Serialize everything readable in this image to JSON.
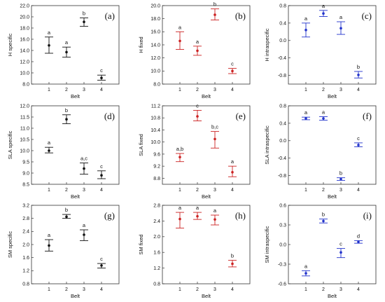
{
  "chart_data": [
    {
      "panel": "(a)",
      "type": "scatter",
      "error_bars": true,
      "ylabel": "H specific",
      "xlabel": "Belt",
      "categories": [
        "1",
        "2",
        "3",
        "4"
      ],
      "ylim": [
        8,
        22
      ],
      "yticks": [
        "8.0",
        "10.0",
        "12.0",
        "14.0",
        "16.0",
        "18.0",
        "20.0",
        "22.0"
      ],
      "mean": [
        14.9,
        13.7,
        19.1,
        9.1
      ],
      "lower": [
        13.5,
        12.8,
        18.3,
        8.7
      ],
      "upper": [
        16.4,
        14.6,
        19.8,
        9.6
      ],
      "letters": [
        "a",
        "a",
        "b",
        "c"
      ],
      "color": "#111111"
    },
    {
      "panel": "(b)",
      "type": "scatter",
      "error_bars": true,
      "ylabel": "H fixed",
      "xlabel": "Belt",
      "categories": [
        "1",
        "2",
        "3",
        "4"
      ],
      "ylim": [
        8,
        20
      ],
      "yticks": [
        "8.0",
        "10.0",
        "12.0",
        "14.0",
        "16.0",
        "18.0",
        "20.0"
      ],
      "mean": [
        14.6,
        13.1,
        18.6,
        10.0
      ],
      "lower": [
        13.3,
        12.4,
        17.8,
        9.6
      ],
      "upper": [
        16.0,
        13.8,
        19.5,
        10.4
      ],
      "letters": [
        "a",
        "a",
        "b",
        "c"
      ],
      "color": "#cc2222"
    },
    {
      "panel": "(c)",
      "type": "scatter",
      "error_bars": true,
      "ylabel": "H intraspecific",
      "xlabel": "Belt",
      "categories": [
        "1",
        "2",
        "3",
        "4"
      ],
      "ylim": [
        -1.0,
        0.8
      ],
      "yticks": [
        "-0.8",
        "-0.4",
        "0.0",
        "0.4",
        "0.8"
      ],
      "mean": [
        0.24,
        0.62,
        0.28,
        -0.79
      ],
      "lower": [
        0.08,
        0.55,
        0.14,
        -0.86
      ],
      "upper": [
        0.4,
        0.69,
        0.43,
        -0.71
      ],
      "letters": [
        "a",
        "a",
        "a",
        "b"
      ],
      "color": "#2233cc"
    },
    {
      "panel": "(d)",
      "type": "scatter",
      "error_bars": true,
      "ylabel": "SLA specific",
      "xlabel": "Belt",
      "categories": [
        "1",
        "2",
        "3",
        "4"
      ],
      "ylim": [
        8.5,
        12.0
      ],
      "yticks": [
        "8.5",
        "9.0",
        "9.5",
        "10.0",
        "10.5",
        "11.0",
        "11.5",
        "12.0"
      ],
      "mean": [
        10.0,
        11.4,
        9.2,
        8.9
      ],
      "lower": [
        9.9,
        11.2,
        8.95,
        8.75
      ],
      "upper": [
        10.15,
        11.6,
        9.45,
        9.1
      ],
      "letters": [
        "a",
        "b",
        "a,c",
        "c"
      ],
      "color": "#111111"
    },
    {
      "panel": "(e)",
      "type": "scatter",
      "error_bars": true,
      "ylabel": "SLA fixed",
      "xlabel": "Belt",
      "categories": [
        "1",
        "2",
        "3",
        "4"
      ],
      "ylim": [
        8.6,
        11.2
      ],
      "yticks": [
        "8.8",
        "9.2",
        "9.6",
        "10.0",
        "10.4",
        "10.8",
        "11.2"
      ],
      "mean": [
        9.5,
        10.85,
        10.1,
        9.0
      ],
      "lower": [
        9.35,
        10.7,
        9.8,
        8.85
      ],
      "upper": [
        9.62,
        11.05,
        10.35,
        9.2
      ],
      "letters": [
        "a,b",
        "c",
        "b,c",
        "a"
      ],
      "color": "#cc2222"
    },
    {
      "panel": "(f)",
      "type": "scatter",
      "error_bars": true,
      "ylabel": "SLA intraspecific",
      "xlabel": "Belt",
      "categories": [
        "1",
        "2",
        "3",
        "4"
      ],
      "ylim": [
        -1.0,
        0.8
      ],
      "yticks": [
        "-0.8",
        "-0.4",
        "0.0",
        "0.4",
        "0.8"
      ],
      "mean": [
        0.51,
        0.51,
        -0.88,
        -0.1
      ],
      "lower": [
        0.48,
        0.47,
        -0.91,
        -0.14
      ],
      "upper": [
        0.54,
        0.55,
        -0.85,
        -0.05
      ],
      "letters": [
        "a",
        "a",
        "b",
        "c"
      ],
      "color": "#2233cc"
    },
    {
      "panel": "(g)",
      "type": "scatter",
      "error_bars": true,
      "ylabel": "SM specific",
      "xlabel": "Belt",
      "categories": [
        "1",
        "2",
        "3",
        "4"
      ],
      "ylim": [
        0.8,
        3.2
      ],
      "yticks": [
        "0.8",
        "1.2",
        "1.6",
        "2.0",
        "2.4",
        "2.8",
        "3.2"
      ],
      "mean": [
        1.97,
        2.85,
        2.3,
        1.36
      ],
      "lower": [
        1.8,
        2.8,
        2.12,
        1.28
      ],
      "upper": [
        2.15,
        2.92,
        2.45,
        1.42
      ],
      "letters": [
        "a",
        "b",
        "a",
        "c"
      ],
      "color": "#111111"
    },
    {
      "panel": "(h)",
      "type": "scatter",
      "error_bars": true,
      "ylabel": "SM fixed",
      "xlabel": "Belt",
      "categories": [
        "1",
        "2",
        "3",
        "4"
      ],
      "ylim": [
        0.8,
        2.8
      ],
      "yticks": [
        "0.8",
        "1.2",
        "1.6",
        "2.0",
        "2.4",
        "2.8"
      ],
      "mean": [
        2.45,
        2.52,
        2.44,
        1.31
      ],
      "lower": [
        2.22,
        2.44,
        2.3,
        1.23
      ],
      "upper": [
        2.62,
        2.62,
        2.55,
        1.4
      ],
      "letters": [
        "a",
        "a",
        "a",
        "b"
      ],
      "color": "#cc2222"
    },
    {
      "panel": "(i)",
      "type": "scatter",
      "error_bars": true,
      "ylabel": "SM intraspecific",
      "xlabel": "Belt",
      "categories": [
        "1",
        "2",
        "3",
        "4"
      ],
      "ylim": [
        -0.6,
        0.6
      ],
      "yticks": [
        "-0.6",
        "-0.3",
        "0.0",
        "0.3",
        "0.6"
      ],
      "mean": [
        -0.44,
        0.36,
        -0.12,
        0.04
      ],
      "lower": [
        -0.48,
        0.33,
        -0.2,
        0.02
      ],
      "upper": [
        -0.4,
        0.39,
        -0.06,
        0.06
      ],
      "letters": [
        "a",
        "b",
        "c",
        "d"
      ],
      "color": "#2233cc"
    }
  ]
}
